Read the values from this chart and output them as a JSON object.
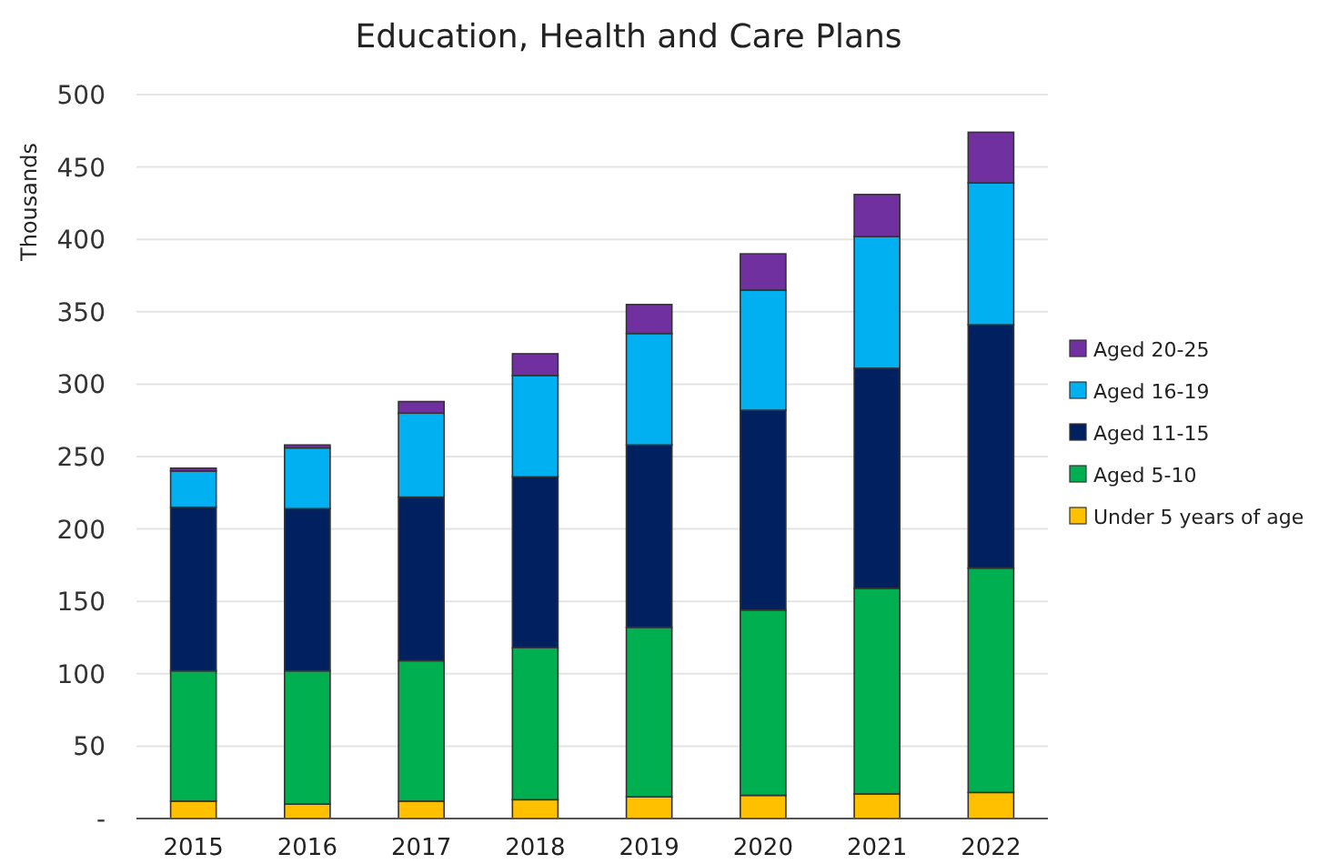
{
  "chart_data": {
    "type": "bar",
    "title": "Education, Health and Care Plans",
    "ylabel": "Thousands",
    "categories": [
      "2015",
      "2016",
      "2017",
      "2018",
      "2019",
      "2020",
      "2021",
      "2022"
    ],
    "stacked": true,
    "series": [
      {
        "name": "Under 5 years of age",
        "color": "#ffc000",
        "values": [
          12,
          10,
          12,
          13,
          15,
          16,
          17,
          18
        ]
      },
      {
        "name": "Aged 5-10",
        "color": "#00b050",
        "values": [
          90,
          92,
          97,
          105,
          117,
          128,
          142,
          155
        ]
      },
      {
        "name": "Aged 11-15",
        "color": "#002060",
        "values": [
          113,
          112,
          113,
          118,
          126,
          138,
          152,
          168
        ]
      },
      {
        "name": "Aged 16-19",
        "color": "#00b0f0",
        "values": [
          25,
          42,
          58,
          70,
          77,
          83,
          91,
          98
        ]
      },
      {
        "name": "Aged 20-25",
        "color": "#7030a0",
        "values": [
          2,
          2,
          8,
          15,
          20,
          25,
          29,
          35
        ]
      }
    ],
    "ylim": [
      0,
      500
    ],
    "yticks": [
      {
        "value": 0,
        "label": "-"
      },
      50,
      100,
      150,
      200,
      250,
      300,
      350,
      400,
      450,
      500
    ],
    "grid": "y",
    "legend": "right"
  }
}
